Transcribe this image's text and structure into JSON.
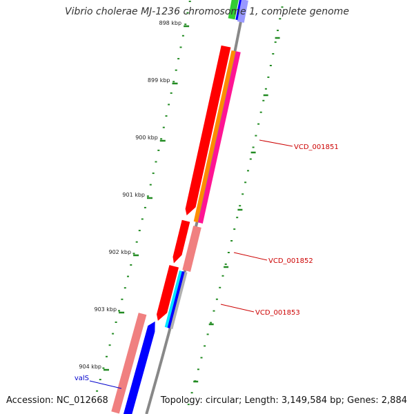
{
  "title": "Vibrio cholerae MJ-1236 chromosome 1, complete genome",
  "accession": "Accession: NC_012668",
  "genome_info": "Topology: circular; Length: 3,149,584 bp; Genes: 2,884",
  "ticks": [
    "898 kbp",
    "899 kbp",
    "900 kbp",
    "901 kbp",
    "902 kbp",
    "903 kbp",
    "904 kbp"
  ],
  "genes": [
    {
      "label": "VCD_001851",
      "color": "#cc0000"
    },
    {
      "label": "VCD_001852",
      "color": "#cc0000"
    },
    {
      "label": "VCD_001853",
      "color": "#cc0000"
    },
    {
      "label": "valS",
      "color": "#0000cc"
    }
  ],
  "colors": {
    "backbone": "#888888",
    "tick": "#228b22",
    "red": "#ff0000",
    "salmon": "#f08080",
    "orange": "#ff8c00",
    "magenta": "#ff1493",
    "blue": "#0000ff",
    "light_blue": "#9999ff",
    "cyan": "#00e5ff",
    "green": "#33cc33",
    "gray": "#b0b0b0"
  }
}
